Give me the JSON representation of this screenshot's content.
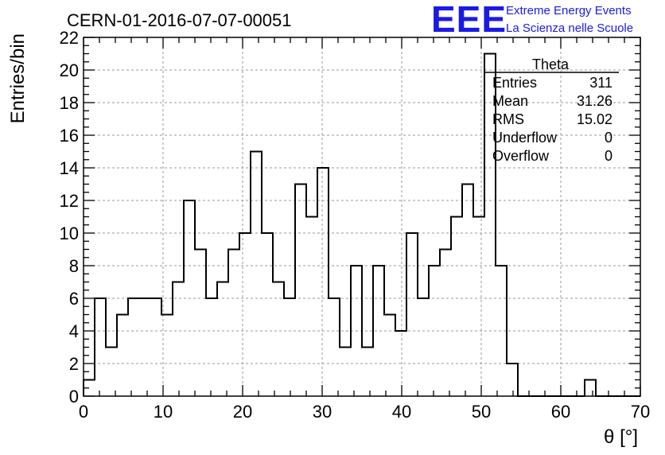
{
  "header": {
    "run_title": "CERN-01-2016-07-07-00051",
    "logo_text": "EEE",
    "logo_line1": "Extreme Energy Events",
    "logo_line2": "La Scienza nelle Scuole"
  },
  "colors": {
    "logo": "#1a1ae6",
    "line": "#000000",
    "grid": "#9a9a9a"
  },
  "stats_box": {
    "title": "Theta",
    "rows": [
      {
        "label": "Entries",
        "value": "311"
      },
      {
        "label": "Mean",
        "value": "31.26"
      },
      {
        "label": "RMS",
        "value": "15.02"
      },
      {
        "label": "Underflow",
        "value": "0"
      },
      {
        "label": "Overflow",
        "value": "0"
      }
    ]
  },
  "chart_data": {
    "type": "bar",
    "style": "step-histogram",
    "xlabel": "θ [°]",
    "ylabel": "Entries/bin",
    "xlim": [
      0,
      70
    ],
    "ylim": [
      0,
      22
    ],
    "xticks": [
      0,
      10,
      20,
      30,
      40,
      50,
      60,
      70
    ],
    "yticks": [
      0,
      2,
      4,
      6,
      8,
      10,
      12,
      14,
      16,
      18,
      20,
      22
    ],
    "grid": true,
    "bin_width": 1.4,
    "values": [
      1,
      6,
      3,
      5,
      6,
      6,
      6,
      5,
      7,
      12,
      9,
      6,
      7,
      9,
      10,
      15,
      10,
      7,
      6,
      13,
      11,
      14,
      6,
      3,
      8,
      3,
      8,
      5,
      4,
      10,
      6,
      8,
      9,
      11,
      13,
      11,
      21,
      8,
      2,
      0,
      0,
      0,
      0,
      0,
      0,
      1,
      0,
      0,
      0,
      0
    ]
  }
}
